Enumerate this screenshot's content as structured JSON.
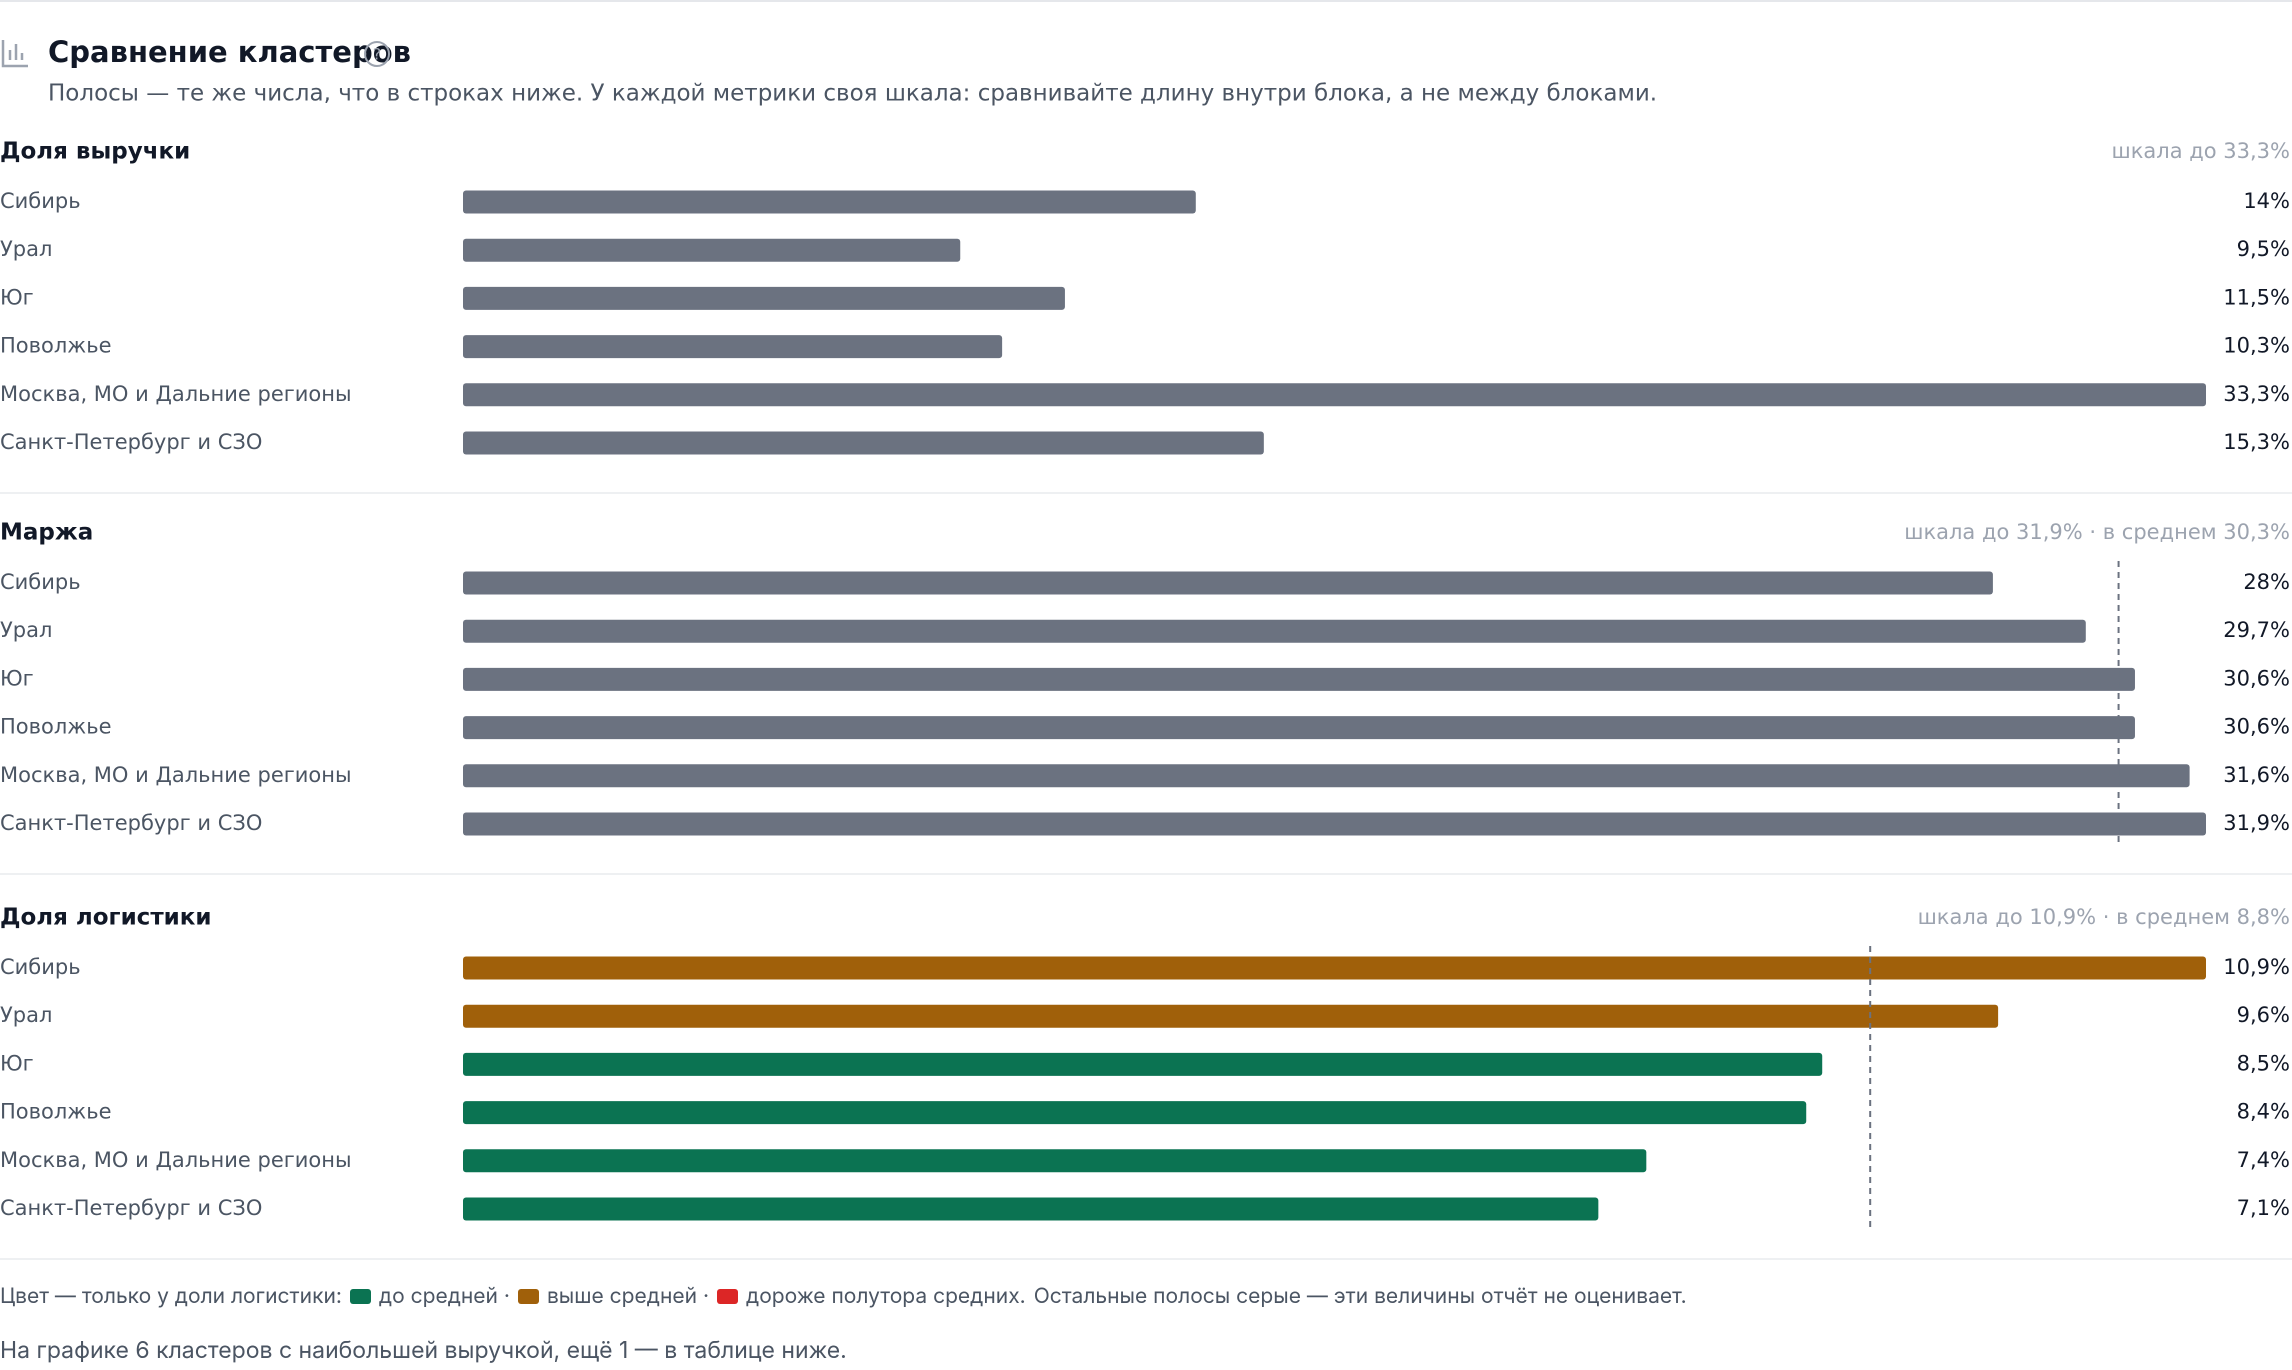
{
  "header": {
    "title": "Сравнение кластеров",
    "subtitle": "Полосы — те же числа, что в строках ниже. У каждой метрики своя шкала: сравнивайте длину внутри блока, а не между блоками."
  },
  "chart_data": [
    {
      "type": "bar",
      "orientation": "horizontal",
      "title": "Доля выручки",
      "note": "шкала до 33,3%",
      "categories": [
        "Сибирь",
        "Урал",
        "Юг",
        "Поволжье",
        "Москва, МО и Дальние регионы",
        "Санкт-Петербург и СЗО"
      ],
      "values": [
        14,
        9.5,
        11.5,
        10.3,
        33.3,
        15.3
      ],
      "value_labels": [
        "14%",
        "9,5%",
        "11,5%",
        "10,3%",
        "33,3%",
        "15,3%"
      ],
      "xlim": [
        0,
        33.3
      ],
      "color": "#6b7280"
    },
    {
      "type": "bar",
      "orientation": "horizontal",
      "title": "Маржа",
      "note": "шкала до 31,9% · в среднем 30,3%",
      "categories": [
        "Сибирь",
        "Урал",
        "Юг",
        "Поволжье",
        "Москва, МО и Дальние регионы",
        "Санкт-Петербург и СЗО"
      ],
      "values": [
        28,
        29.7,
        30.6,
        30.6,
        31.6,
        31.9
      ],
      "value_labels": [
        "28%",
        "29,7%",
        "30,6%",
        "30,6%",
        "31,6%",
        "31,9%"
      ],
      "xlim": [
        0,
        31.9
      ],
      "mean": 30.3,
      "color": "#6b7280"
    },
    {
      "type": "bar",
      "orientation": "horizontal",
      "title": "Доля логистики",
      "note": "шкала до 10,9% · в среднем 8,8%",
      "categories": [
        "Сибирь",
        "Урал",
        "Юг",
        "Поволжье",
        "Москва, МО и Дальние регионы",
        "Санкт-Петербург и СЗО"
      ],
      "values": [
        10.9,
        9.6,
        8.5,
        8.4,
        7.4,
        7.1
      ],
      "value_labels": [
        "10,9%",
        "9,6%",
        "8,5%",
        "8,4%",
        "7,4%",
        "7,1%"
      ],
      "xlim": [
        0,
        10.9
      ],
      "mean": 8.8,
      "colors": [
        "#a0600a",
        "#a0600a",
        "#0b7352",
        "#0b7352",
        "#0b7352",
        "#0b7352"
      ]
    }
  ],
  "legend": {
    "prefix": "Цвет — только у доли логистики:",
    "items": [
      {
        "label": "до средней ·",
        "color": "#0b7352"
      },
      {
        "label": "выше средней ·",
        "color": "#a0600a"
      },
      {
        "label": "дороже полутора средних.",
        "color": "#dc2626"
      }
    ],
    "suffix": "Остальные полосы серые — эти величины отчёт не оценивает."
  },
  "footer": "На графике 6 кластеров с наибольшей выручкой, ещё 1 — в таблице ниже."
}
